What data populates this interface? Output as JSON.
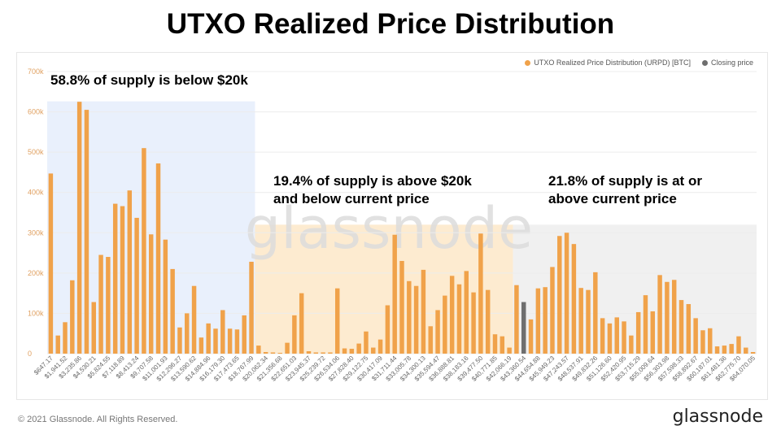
{
  "title": "UTXO Realized Price Distribution",
  "legend": {
    "urpd_label": "UTXO Realized Price Distribution (URPD) [BTC]",
    "closing_label": "Closing price",
    "urpd_color": "#f0a24a",
    "closing_color": "#6e6e6e"
  },
  "annotations": {
    "below": "58.8% of supply is below $20k",
    "middle_line1": "19.4% of supply is above $20k",
    "middle_line2": "and below current price",
    "above_line1": "21.8% of supply is at or",
    "above_line2": "above current price"
  },
  "watermark": "glassnode",
  "footer": {
    "copyright": "© 2021 Glassnode. All Rights Reserved.",
    "logo": "glassnode"
  },
  "chart_data": {
    "type": "bar",
    "ylim": [
      0,
      700000
    ],
    "yticks": [
      "0",
      "100k",
      "200k",
      "300k",
      "400k",
      "500k",
      "600k",
      "700k"
    ],
    "region_colors": {
      "below": "#e5edfb",
      "middle": "#fde8c8",
      "above": "#ededed"
    },
    "closing_price_bar_index": 66,
    "tick_labels": [
      "$647.17",
      "$1,941.52",
      "$3,235.86",
      "$4,530.21",
      "$5,824.55",
      "$7,118.89",
      "$8,413.24",
      "$9,707.58",
      "$11,001.93",
      "$12,296.27",
      "$13,590.62",
      "$14,884.96",
      "$16,179.30",
      "$17,473.65",
      "$18,767.99",
      "$20,062.34",
      "$21,356.68",
      "$22,651.03",
      "$23,945.37",
      "$25,239.72",
      "$26,534.06",
      "$27,828.40",
      "$29,122.75",
      "$30,417.09",
      "$31,711.44",
      "$33,005.78",
      "$34,300.13",
      "$35,594.47",
      "$36,888.81",
      "$38,183.16",
      "$39,477.50",
      "$40,771.85",
      "$42,066.19",
      "$43,360.54",
      "$44,654.88",
      "$45,949.23",
      "$47,243.57",
      "$48,537.91",
      "$49,832.26",
      "$51,126.60",
      "$52,420.95",
      "$53,715.29",
      "$55,009.64",
      "$56,303.98",
      "$57,598.33",
      "$58,892.67",
      "$60,187.01",
      "$61,481.36",
      "$62,775.70",
      "$64,070.05"
    ],
    "values": [
      447000,
      45000,
      78000,
      182000,
      625000,
      605000,
      128000,
      245000,
      240000,
      372000,
      366000,
      405000,
      337000,
      510000,
      296000,
      472000,
      283000,
      210000,
      65000,
      100000,
      168000,
      40000,
      75000,
      62000,
      108000,
      62000,
      60000,
      95000,
      228000,
      20000,
      4000,
      3000,
      2000,
      27000,
      95000,
      150000,
      6000,
      3000,
      3000,
      3000,
      162000,
      13000,
      12000,
      25000,
      55000,
      15000,
      35000,
      120000,
      295000,
      230000,
      180000,
      168000,
      208000,
      68000,
      108000,
      144000,
      193000,
      172000,
      205000,
      152000,
      298000,
      158000,
      48000,
      43000,
      15000,
      170000,
      128000,
      85000,
      162000,
      165000,
      215000,
      292000,
      300000,
      272000,
      163000,
      158000,
      202000,
      88000,
      75000,
      90000,
      80000,
      45000,
      103000,
      145000,
      105000,
      195000,
      178000,
      183000,
      133000,
      123000,
      88000,
      58000,
      63000,
      18000,
      20000,
      24000,
      43000,
      15000,
      4000
    ]
  }
}
